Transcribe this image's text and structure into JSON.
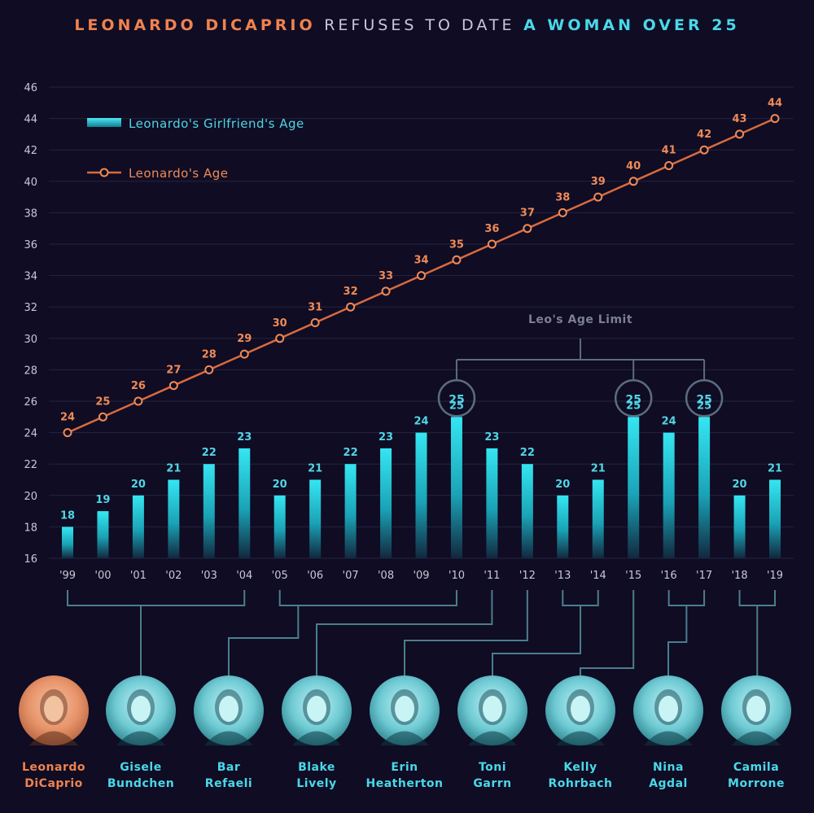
{
  "title": {
    "part1": "LEONARDO DICAPRIO",
    "part2": "REFUSES TO DATE",
    "part3": "A WOMAN OVER 25"
  },
  "colors": {
    "background": "#0f0c24",
    "accent_orange": "#f0824e",
    "accent_cyan": "#4ad8e8",
    "grid": "#26233f",
    "connector": "#4a7f8c"
  },
  "chart_data": {
    "type": "bar",
    "categories": [
      "'99",
      "'00",
      "'01",
      "'02",
      "'03",
      "'04",
      "'05",
      "'06",
      "'07",
      "'08",
      "'09",
      "'10",
      "'11",
      "'12",
      "'13",
      "'14",
      "'15",
      "'16",
      "'17",
      "'18",
      "'19"
    ],
    "series": [
      {
        "name": "Leonardo's Girlfriend's Age",
        "type": "bar",
        "values": [
          18,
          19,
          20,
          21,
          22,
          23,
          20,
          21,
          22,
          23,
          24,
          25,
          23,
          22,
          20,
          21,
          25,
          24,
          25,
          20,
          21
        ]
      },
      {
        "name": "Leonardo's Age",
        "type": "line",
        "values": [
          24,
          25,
          26,
          27,
          28,
          29,
          30,
          31,
          32,
          33,
          34,
          35,
          36,
          37,
          38,
          39,
          40,
          41,
          42,
          43,
          44
        ]
      }
    ],
    "ylim": [
      16,
      46
    ],
    "yticks": [
      16,
      18,
      20,
      22,
      24,
      26,
      28,
      30,
      32,
      34,
      36,
      38,
      40,
      42,
      44,
      46
    ],
    "grid": true,
    "legend": "top-left",
    "annotation": {
      "text": "Leo's Age Limit",
      "highlight_categories": [
        "'10",
        "'15",
        "'17"
      ],
      "value": 25
    },
    "xlabel": "",
    "ylabel": ""
  },
  "people": [
    {
      "name_line1": "Leonardo",
      "name_line2": "DiCaprio",
      "icon": "leonardo-portrait"
    },
    {
      "name_line1": "Gisele",
      "name_line2": "Bundchen",
      "icon": "gisele-portrait"
    },
    {
      "name_line1": "Bar",
      "name_line2": "Refaeli",
      "icon": "bar-portrait"
    },
    {
      "name_line1": "Blake",
      "name_line2": "Lively",
      "icon": "blake-portrait"
    },
    {
      "name_line1": "Erin",
      "name_line2": "Heatherton",
      "icon": "erin-portrait"
    },
    {
      "name_line1": "Toni",
      "name_line2": "Garrn",
      "icon": "toni-portrait"
    },
    {
      "name_line1": "Kelly",
      "name_line2": "Rohrbach",
      "icon": "kelly-portrait"
    },
    {
      "name_line1": "Nina",
      "name_line2": "Agdal",
      "icon": "nina-portrait"
    },
    {
      "name_line1": "Camila",
      "name_line2": "Morrone",
      "icon": "camila-portrait"
    }
  ]
}
